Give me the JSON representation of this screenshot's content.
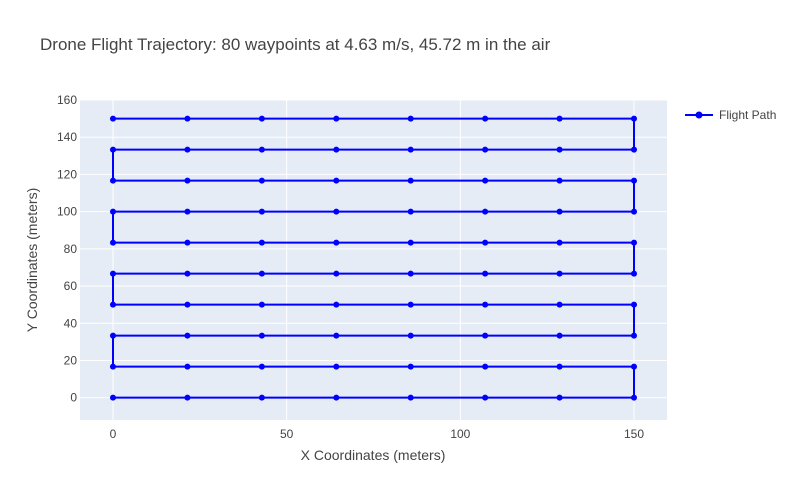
{
  "chart_data": {
    "type": "line",
    "title": "Drone Flight Trajectory: 80 waypoints at 4.63 m/s, 45.72 m in the air",
    "xlabel": "X Coordinates (meters)",
    "ylabel": "Y Coordinates (meters)",
    "xlim": [
      -9.5,
      159.5
    ],
    "ylim": [
      -12,
      160
    ],
    "xticks": [
      0,
      50,
      100,
      150
    ],
    "yticks": [
      0,
      20,
      40,
      60,
      80,
      100,
      120,
      140,
      160
    ],
    "grid": true,
    "legend_position": "top-right",
    "series": [
      {
        "name": "Flight Path",
        "color": "#0000ff",
        "mode": "lines+markers",
        "x": [
          0,
          21.43,
          42.86,
          64.29,
          85.71,
          107.14,
          128.57,
          150,
          150,
          128.57,
          107.14,
          85.71,
          64.29,
          42.86,
          21.43,
          0,
          0,
          21.43,
          42.86,
          64.29,
          85.71,
          107.14,
          128.57,
          150,
          150,
          128.57,
          107.14,
          85.71,
          64.29,
          42.86,
          21.43,
          0,
          0,
          21.43,
          42.86,
          64.29,
          85.71,
          107.14,
          128.57,
          150,
          150,
          128.57,
          107.14,
          85.71,
          64.29,
          42.86,
          21.43,
          0,
          0,
          21.43,
          42.86,
          64.29,
          85.71,
          107.14,
          128.57,
          150,
          150,
          128.57,
          107.14,
          85.71,
          64.29,
          42.86,
          21.43,
          0,
          0,
          21.43,
          42.86,
          64.29,
          85.71,
          107.14,
          128.57,
          150,
          150,
          128.57,
          107.14,
          85.71,
          64.29,
          42.86,
          21.43,
          0
        ],
        "y": [
          0,
          0,
          0,
          0,
          0,
          0,
          0,
          0,
          16.67,
          16.67,
          16.67,
          16.67,
          16.67,
          16.67,
          16.67,
          16.67,
          33.33,
          33.33,
          33.33,
          33.33,
          33.33,
          33.33,
          33.33,
          33.33,
          50,
          50,
          50,
          50,
          50,
          50,
          50,
          50,
          66.67,
          66.67,
          66.67,
          66.67,
          66.67,
          66.67,
          66.67,
          66.67,
          83.33,
          83.33,
          83.33,
          83.33,
          83.33,
          83.33,
          83.33,
          83.33,
          100,
          100,
          100,
          100,
          100,
          100,
          100,
          100,
          116.67,
          116.67,
          116.67,
          116.67,
          116.67,
          116.67,
          116.67,
          116.67,
          133.33,
          133.33,
          133.33,
          133.33,
          133.33,
          133.33,
          133.33,
          133.33,
          150,
          150,
          150,
          150,
          150,
          150,
          150,
          150
        ]
      }
    ]
  },
  "colors": {
    "plot_background": "#e5ecf6",
    "grid": "#ffffff"
  }
}
